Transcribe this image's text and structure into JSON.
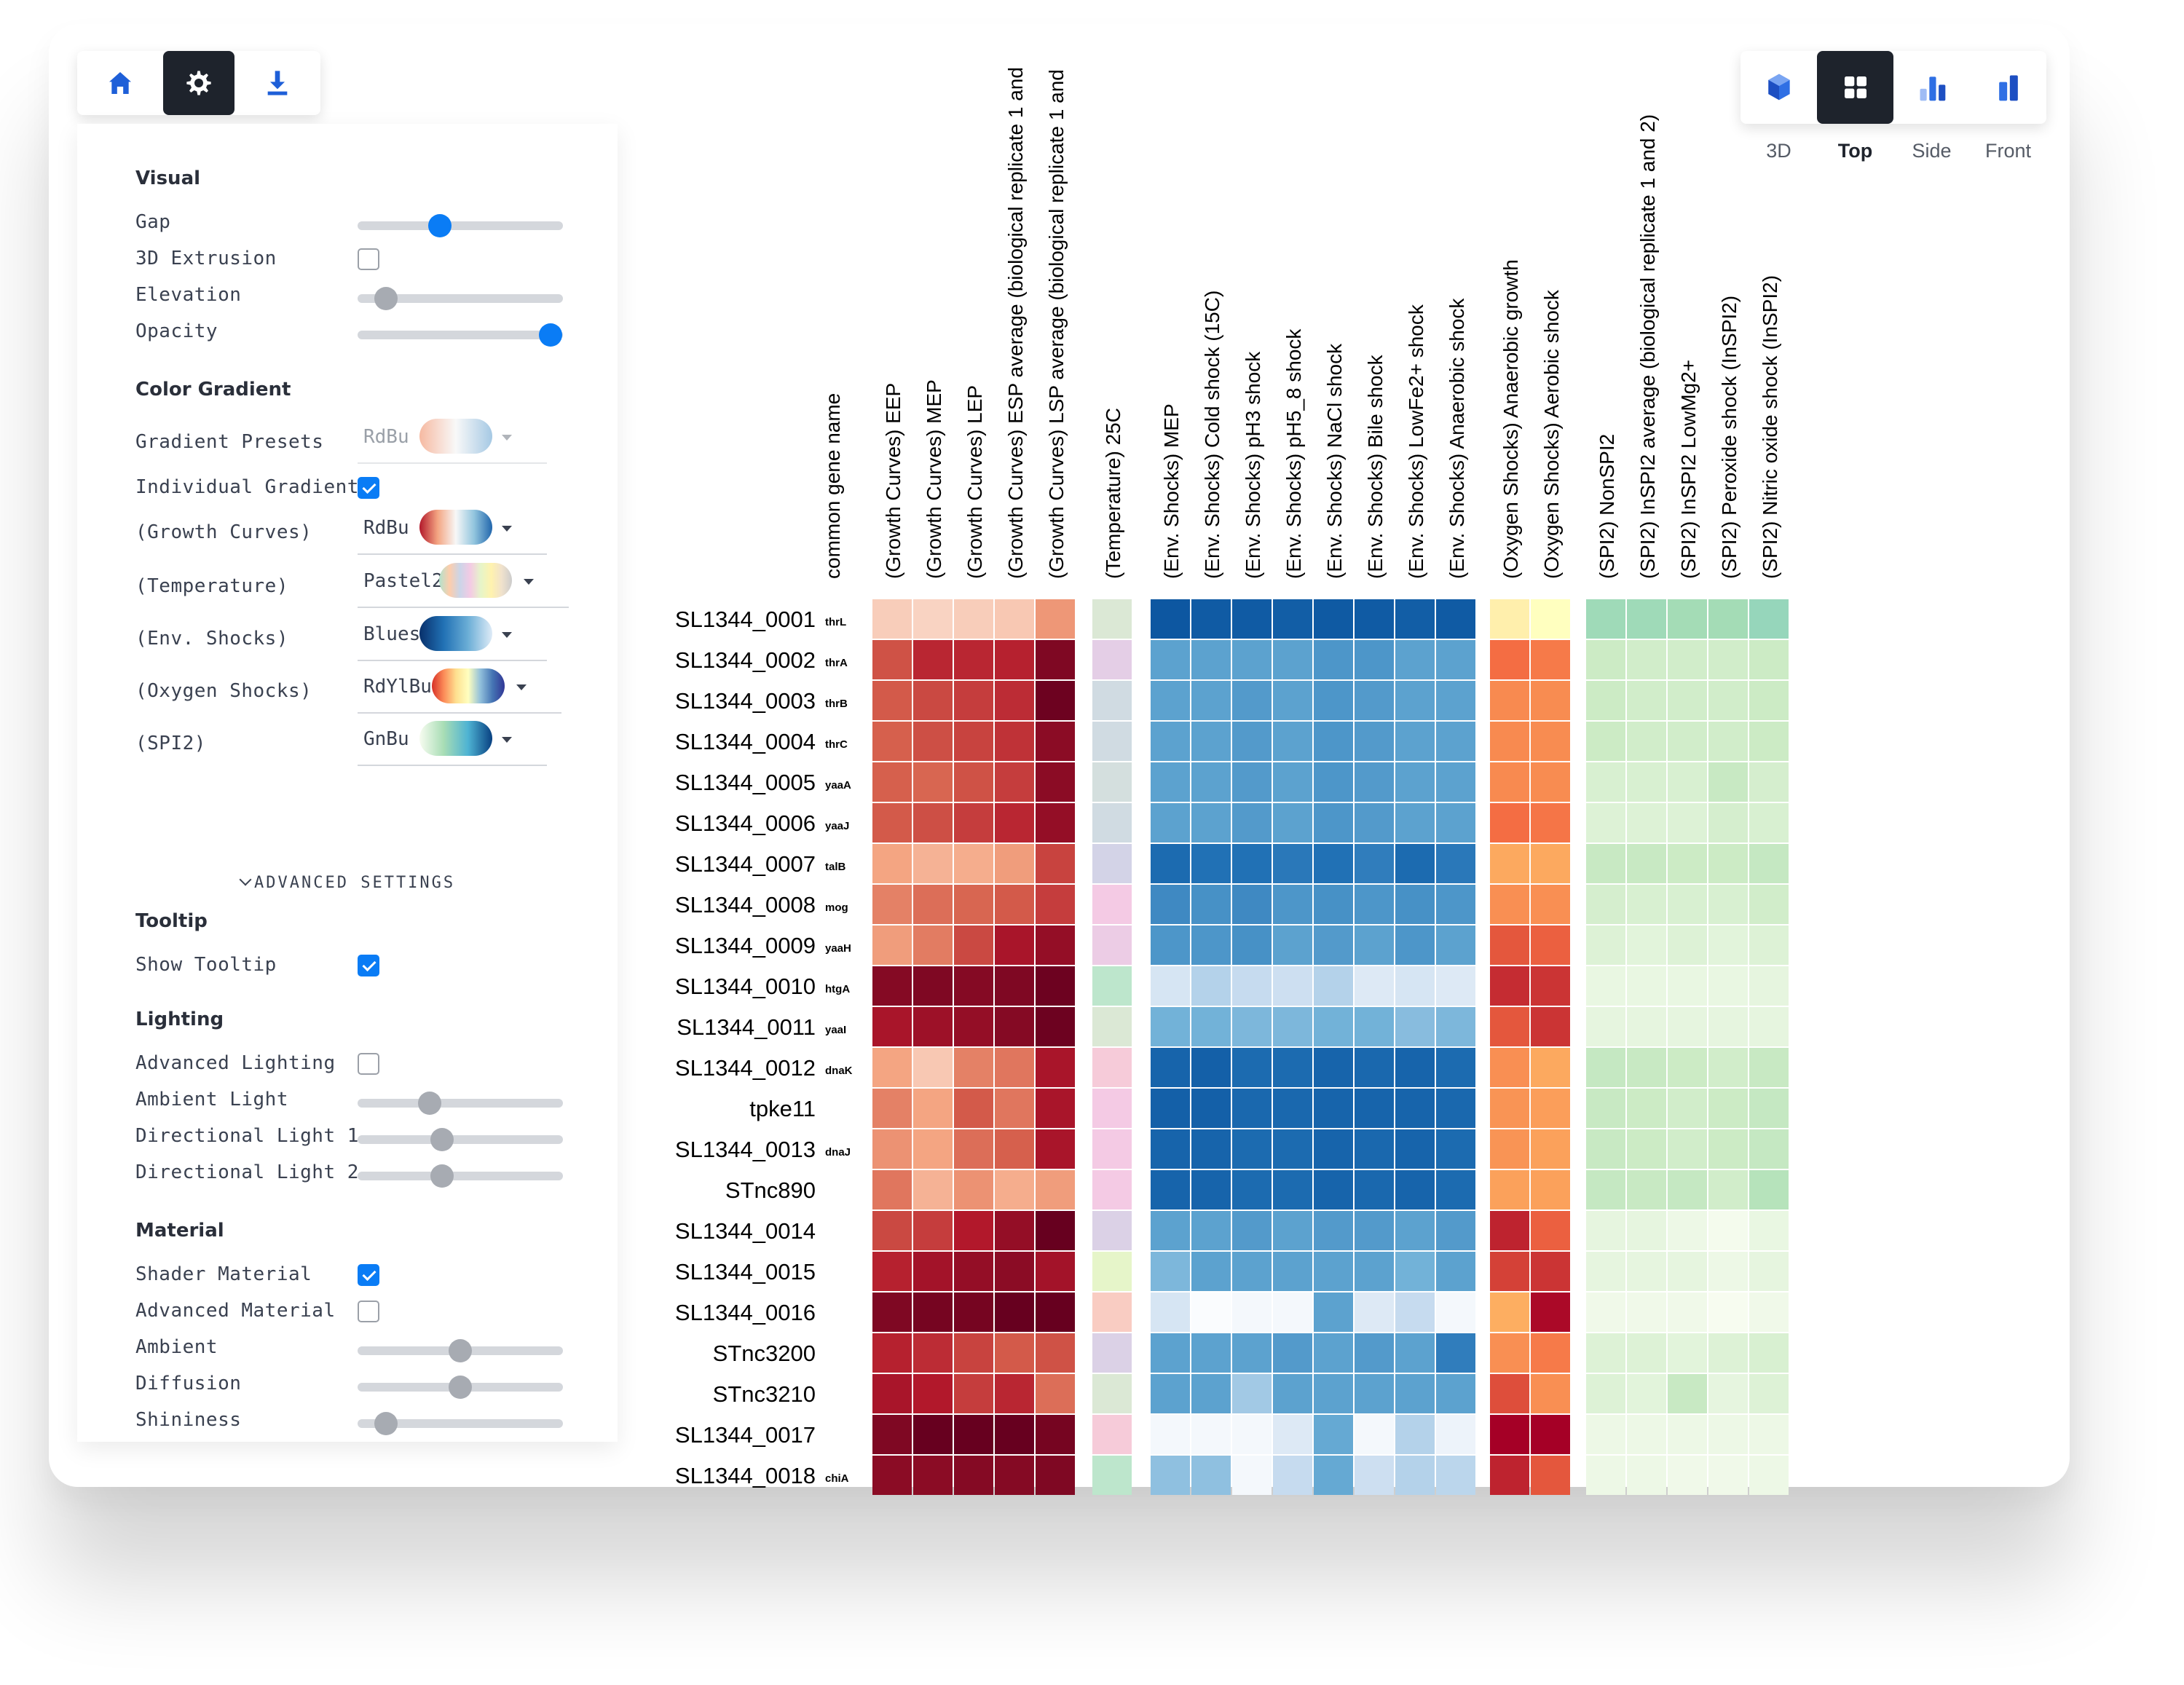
{
  "toolbar": {
    "left_buttons": [
      "home-icon",
      "gear-icon",
      "download-icon"
    ],
    "active": "gear-icon"
  },
  "view_modes": [
    "3D",
    "Top",
    "Side",
    "Front"
  ],
  "active_view": "Top",
  "panel": {
    "visual": {
      "title": "Visual",
      "gap": {
        "label": "Gap",
        "value": 0.4
      },
      "extrusion": {
        "label": "3D Extrusion",
        "checked": false
      },
      "elevation": {
        "label": "Elevation",
        "value": 0.14
      },
      "opacity": {
        "label": "Opacity",
        "value": 0.94
      }
    },
    "color_gradient": {
      "title": "Color Gradient",
      "presets": {
        "label": "Gradient Presets",
        "value": "RdBu"
      },
      "individual": {
        "label": "Individual Gradients",
        "checked": true
      },
      "groups": [
        {
          "label": "(Growth Curves)",
          "value": "RdBu"
        },
        {
          "label": "(Temperature)",
          "value": "Pastel2"
        },
        {
          "label": "(Env. Shocks)",
          "value": "Blues"
        },
        {
          "label": "(Oxygen Shocks)",
          "value": "RdYlBu"
        },
        {
          "label": "(SPI2)",
          "value": "GnBu"
        }
      ]
    },
    "advanced_label": "ADVANCED SETTINGS",
    "tooltip": {
      "title": "Tooltip",
      "show": {
        "label": "Show Tooltip",
        "checked": true
      }
    },
    "lighting": {
      "title": "Lighting",
      "advanced": {
        "label": "Advanced Lighting",
        "checked": false
      },
      "ambient": {
        "label": "Ambient Light",
        "value": 0.35
      },
      "dir1": {
        "label": "Directional Light 1",
        "value": 0.41
      },
      "dir2": {
        "label": "Directional Light 2",
        "value": 0.41
      }
    },
    "material": {
      "title": "Material",
      "shader": {
        "label": "Shader Material",
        "checked": true
      },
      "advanced": {
        "label": "Advanced Material",
        "checked": false
      },
      "ambient": {
        "label": "Ambient",
        "value": 0.5
      },
      "diffusion": {
        "label": "Diffusion",
        "value": 0.5
      },
      "shininess": {
        "label": "Shininess",
        "value": 0.14
      }
    }
  },
  "chart_data": {
    "type": "heatmap",
    "row_header": "common gene name",
    "groups": [
      {
        "name": "Growth Curves",
        "colormap": "RdBu",
        "columns": [
          "(Growth Curves) EEP",
          "(Growth Curves) MEP",
          "(Growth Curves) LEP",
          "(Growth Curves) ESP average (biological replicate 1 and",
          "(Growth Curves) LSP average (biological replicate 1 and"
        ]
      },
      {
        "name": "Temperature",
        "colormap": "Pastel2",
        "columns": [
          "(Temperature) 25C"
        ]
      },
      {
        "name": "Env. Shocks",
        "colormap": "Blues",
        "columns": [
          "(Env. Shocks) MEP",
          "(Env. Shocks) Cold shock (15C)",
          "(Env. Shocks) pH3 shock",
          "(Env. Shocks) pH5_8 shock",
          "(Env. Shocks) NaCl shock",
          "(Env. Shocks) Bile shock",
          "(Env. Shocks) LowFe2+ shock",
          "(Env. Shocks) Anaerobic shock"
        ]
      },
      {
        "name": "Oxygen Shocks",
        "colormap": "RdYlBu",
        "columns": [
          "(Oxygen Shocks) Anaerobic growth",
          "(Oxygen Shocks) Aerobic shock"
        ]
      },
      {
        "name": "SPI2",
        "colormap": "GnBu",
        "columns": [
          "(SPI2) NonSPI2",
          "(SPI2) InSPI2 average (biological replicate 1 and 2)",
          "(SPI2) InSPI2 LowMg2+",
          "(SPI2) Peroxide shock (InSPI2)",
          "(SPI2) Nitric oxide shock (InSPI2)"
        ]
      }
    ],
    "rows": [
      {
        "id": "SL1344_0001",
        "gene": "thrL"
      },
      {
        "id": "SL1344_0002",
        "gene": "thrA"
      },
      {
        "id": "SL1344_0003",
        "gene": "thrB"
      },
      {
        "id": "SL1344_0004",
        "gene": "thrC"
      },
      {
        "id": "SL1344_0005",
        "gene": "yaaA"
      },
      {
        "id": "SL1344_0006",
        "gene": "yaaJ"
      },
      {
        "id": "SL1344_0007",
        "gene": "talB"
      },
      {
        "id": "SL1344_0008",
        "gene": "mog"
      },
      {
        "id": "SL1344_0009",
        "gene": "yaaH"
      },
      {
        "id": "SL1344_0010",
        "gene": "htgA"
      },
      {
        "id": "SL1344_0011",
        "gene": "yaaI"
      },
      {
        "id": "SL1344_0012",
        "gene": "dnaK"
      },
      {
        "id": "tpke11",
        "gene": ""
      },
      {
        "id": "SL1344_0013",
        "gene": "dnaJ"
      },
      {
        "id": "STnc890",
        "gene": ""
      },
      {
        "id": "SL1344_0014",
        "gene": ""
      },
      {
        "id": "SL1344_0015",
        "gene": ""
      },
      {
        "id": "SL1344_0016",
        "gene": ""
      },
      {
        "id": "STnc3200",
        "gene": ""
      },
      {
        "id": "STnc3210",
        "gene": ""
      },
      {
        "id": "SL1344_0017",
        "gene": ""
      },
      {
        "id": "SL1344_0018",
        "gene": "chiA"
      }
    ],
    "values": [
      [
        0.1,
        0.08,
        0.1,
        0.12,
        0.3,
        0.35,
        0.95,
        0.92,
        0.92,
        0.9,
        0.93,
        0.92,
        0.9,
        0.92,
        0.3,
        0.25,
        0.55,
        0.55,
        0.52,
        0.52,
        0.6
      ],
      [
        0.55,
        0.7,
        0.7,
        0.72,
        0.92,
        0.65,
        0.55,
        0.55,
        0.55,
        0.55,
        0.6,
        0.6,
        0.55,
        0.55,
        0.75,
        0.7,
        0.25,
        0.22,
        0.22,
        0.22,
        0.25
      ],
      [
        0.52,
        0.58,
        0.62,
        0.68,
        0.98,
        0.45,
        0.55,
        0.55,
        0.58,
        0.55,
        0.6,
        0.58,
        0.55,
        0.55,
        0.64,
        0.63,
        0.25,
        0.22,
        0.22,
        0.22,
        0.25
      ],
      [
        0.5,
        0.56,
        0.6,
        0.66,
        0.88,
        0.45,
        0.55,
        0.55,
        0.58,
        0.55,
        0.6,
        0.58,
        0.55,
        0.55,
        0.64,
        0.63,
        0.25,
        0.22,
        0.22,
        0.22,
        0.25
      ],
      [
        0.5,
        0.48,
        0.55,
        0.62,
        0.88,
        0.42,
        0.55,
        0.55,
        0.58,
        0.55,
        0.6,
        0.58,
        0.55,
        0.55,
        0.64,
        0.63,
        0.18,
        0.18,
        0.18,
        0.28,
        0.2
      ],
      [
        0.52,
        0.56,
        0.62,
        0.7,
        0.85,
        0.45,
        0.55,
        0.55,
        0.58,
        0.55,
        0.6,
        0.58,
        0.55,
        0.55,
        0.75,
        0.72,
        0.15,
        0.15,
        0.15,
        0.2,
        0.18
      ],
      [
        0.25,
        0.2,
        0.22,
        0.28,
        0.6,
        0.55,
        0.8,
        0.75,
        0.75,
        0.72,
        0.75,
        0.7,
        0.8,
        0.72,
        0.52,
        0.52,
        0.28,
        0.28,
        0.25,
        0.25,
        0.3
      ],
      [
        0.38,
        0.45,
        0.48,
        0.52,
        0.62,
        0.75,
        0.65,
        0.62,
        0.65,
        0.6,
        0.62,
        0.6,
        0.62,
        0.6,
        0.62,
        0.62,
        0.2,
        0.18,
        0.18,
        0.18,
        0.22
      ],
      [
        0.28,
        0.4,
        0.58,
        0.78,
        0.85,
        0.7,
        0.6,
        0.6,
        0.62,
        0.55,
        0.58,
        0.55,
        0.6,
        0.55,
        0.8,
        0.78,
        0.15,
        0.12,
        0.15,
        0.12,
        0.15
      ],
      [
        0.9,
        0.92,
        0.9,
        0.92,
        0.98,
        0.05,
        0.18,
        0.3,
        0.25,
        0.22,
        0.3,
        0.15,
        0.18,
        0.15,
        0.9,
        0.88,
        0.08,
        0.08,
        0.08,
        0.08,
        0.1
      ],
      [
        0.78,
        0.82,
        0.85,
        0.9,
        0.98,
        0.35,
        0.48,
        0.48,
        0.45,
        0.45,
        0.48,
        0.48,
        0.42,
        0.45,
        0.8,
        0.88,
        0.1,
        0.1,
        0.1,
        0.1,
        0.1
      ],
      [
        0.25,
        0.12,
        0.38,
        0.42,
        0.78,
        0.8,
        0.85,
        0.88,
        0.8,
        0.8,
        0.85,
        0.82,
        0.85,
        0.8,
        0.62,
        0.52,
        0.3,
        0.28,
        0.25,
        0.22,
        0.28
      ],
      [
        0.38,
        0.25,
        0.52,
        0.42,
        0.78,
        0.75,
        0.88,
        0.88,
        0.82,
        0.82,
        0.85,
        0.85,
        0.85,
        0.82,
        0.6,
        0.56,
        0.28,
        0.25,
        0.22,
        0.25,
        0.3
      ],
      [
        0.32,
        0.25,
        0.45,
        0.5,
        0.78,
        0.75,
        0.85,
        0.85,
        0.8,
        0.8,
        0.85,
        0.82,
        0.85,
        0.8,
        0.6,
        0.55,
        0.28,
        0.25,
        0.22,
        0.25,
        0.3
      ],
      [
        0.42,
        0.2,
        0.32,
        0.22,
        0.28,
        0.75,
        0.85,
        0.85,
        0.8,
        0.8,
        0.85,
        0.82,
        0.85,
        0.8,
        0.55,
        0.55,
        0.3,
        0.28,
        0.3,
        0.22,
        0.4
      ],
      [
        0.58,
        0.62,
        0.75,
        0.85,
        1.0,
        0.6,
        0.55,
        0.55,
        0.58,
        0.55,
        0.58,
        0.58,
        0.55,
        0.58,
        0.92,
        0.78,
        0.1,
        0.1,
        0.06,
        0.02,
        0.08
      ],
      [
        0.72,
        0.8,
        0.85,
        0.88,
        0.8,
        0.25,
        0.45,
        0.55,
        0.55,
        0.55,
        0.55,
        0.55,
        0.48,
        0.55,
        0.85,
        0.88,
        0.1,
        0.1,
        0.1,
        0.06,
        0.1
      ],
      [
        0.92,
        0.95,
        0.95,
        1.0,
        1.0,
        0.9,
        0.18,
        0.02,
        0.05,
        0.05,
        0.55,
        0.15,
        0.25,
        0.05,
        0.5,
        0.98,
        0.04,
        0.04,
        0.04,
        0.0,
        0.04
      ],
      [
        0.72,
        0.68,
        0.6,
        0.52,
        0.55,
        0.6,
        0.55,
        0.55,
        0.55,
        0.58,
        0.55,
        0.58,
        0.55,
        0.7,
        0.62,
        0.7,
        0.15,
        0.15,
        0.12,
        0.15,
        0.18
      ],
      [
        0.78,
        0.75,
        0.62,
        0.7,
        0.45,
        0.35,
        0.55,
        0.55,
        0.35,
        0.55,
        0.55,
        0.55,
        0.55,
        0.55,
        0.82,
        0.62,
        0.15,
        0.12,
        0.28,
        0.1,
        0.15
      ],
      [
        0.92,
        1.0,
        1.0,
        1.0,
        0.95,
        0.8,
        0.05,
        0.05,
        0.05,
        0.15,
        0.52,
        0.05,
        0.3,
        0.08,
        1.0,
        1.0,
        0.06,
        0.06,
        0.06,
        0.06,
        0.06
      ],
      [
        0.88,
        0.88,
        0.9,
        0.9,
        0.92,
        0.05,
        0.4,
        0.4,
        0.05,
        0.25,
        0.52,
        0.22,
        0.3,
        0.28,
        0.92,
        0.8,
        0.06,
        0.06,
        0.04,
        0.04,
        0.06
      ]
    ]
  }
}
